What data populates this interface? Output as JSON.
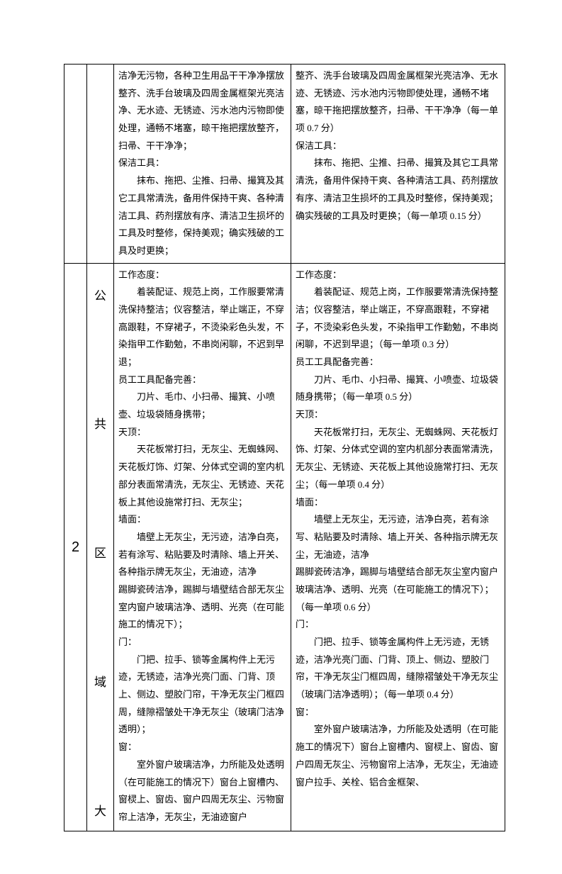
{
  "row1": {
    "col3_lines": [
      {
        "indent": false,
        "text": "洁净无污物，各种卫生用品干干净净摆放整齐、洗手台玻璃及四周金属框架光亮洁净、无水迹、无锈迹、污水池内污物即使处理，通畅不堵塞，晾干拖把摆放整齐，扫帚、干干净净；"
      },
      {
        "indent": false,
        "text": "保洁工具："
      },
      {
        "indent": true,
        "text": "抹布、拖把、尘推、扫帚、撮箕及其它工具常清洗，备用件保持干爽、各种清洁工具、药剂摆放有序、清洁卫生损坏的工具及时整修，保持美观；确实残破的工具及时更换；"
      }
    ],
    "col4_lines": [
      {
        "indent": false,
        "text": "整齐、洗手台玻璃及四周金属框架光亮洁净、无水迹、无锈迹、污水池内污物即使处理，通畅不堵塞，晾干拖把摆放整齐，扫帚、干干净净（每一单项 0.7 分）"
      },
      {
        "indent": false,
        "text": "保洁工具："
      },
      {
        "indent": true,
        "text": "抹布、拖把、尘推、扫帚、撮箕及其它工具常清洗，备用件保持干爽、各种清洁工具、药剂摆放有序、清洁卫生损坏的工具及时整修，保持美观；确实残破的工具及时更换；（每一单项 0.15 分）"
      }
    ]
  },
  "row2": {
    "num": "2",
    "cat_chars": [
      "公",
      "共",
      "区",
      "域",
      "大"
    ],
    "col3_lines": [
      {
        "indent": false,
        "text": "工作态度："
      },
      {
        "indent": true,
        "text": "着装配证、规范上岗，工作服要常清洗保持整洁；仪容整洁，举止端正，不穿高跟鞋，不穿裙子，不烫染彩色头发，不染指甲工作勤勉，不串岗闲聊，不迟到早退；"
      },
      {
        "indent": false,
        "text": "员工工具配备完善："
      },
      {
        "indent": true,
        "text": "刀片、毛巾、小扫帚、撮箕、小喷壶、垃圾袋随身携带；"
      },
      {
        "indent": false,
        "text": "天顶："
      },
      {
        "indent": true,
        "text": "天花板常打扫，无灰尘、无蜘蛛网、天花板灯饰、灯架、分体式空调的室内机部分表面常清洗，无灰尘、无锈迹、天花板上其他设施常打扫、无灰尘；"
      },
      {
        "indent": false,
        "text": "墙面："
      },
      {
        "indent": true,
        "text": "墙壁上无灰尘，无污迹，洁净白亮，若有涂写、粘贴要及时清除、墙上开关、各种指示牌无灰尘，无油迹，洁净"
      },
      {
        "indent": false,
        "text": "踢脚瓷砖洁净，踢脚与墙壁结合部无灰尘室内窗户玻璃洁净、透明、光亮（在可能施工的情况下）；"
      },
      {
        "indent": false,
        "text": "门："
      },
      {
        "indent": true,
        "text": "门把、拉手、锁等金属构件上无污迹，无锈迹，洁净光亮门面、门背、顶上、侧边、塑胶门帘，干净无灰尘门框四周，缝隙褶皱处干净无灰尘（玻璃门洁净透明）；"
      },
      {
        "indent": false,
        "text": "窗："
      },
      {
        "indent": true,
        "text": "室外窗户玻璃洁净，力所能及处透明（在可能施工的情况下）窗台上窗槽内、窗棂上、窗齿、窗户四周无灰尘、污物窗帘上洁净，无灰尘，无油迹窗户"
      }
    ],
    "col4_lines": [
      {
        "indent": false,
        "text": "工作态度："
      },
      {
        "indent": true,
        "text": "着装配证、规范上岗，工作服要常清洗保持整洁；仪容整洁，举止端正，不穿高跟鞋，不穿裙子，不烫染彩色头发，不染指甲工作勤勉，不串岗闲聊，不迟到早退；（每一单项 0.3 分）"
      },
      {
        "indent": false,
        "text": "员工工具配备完善："
      },
      {
        "indent": true,
        "text": "刀片、毛巾、小扫帚、撮箕、小喷壶、垃圾袋随身携带；（每一单项 0.5 分）"
      },
      {
        "indent": false,
        "text": "天顶："
      },
      {
        "indent": true,
        "text": "天花板常打扫，无灰尘、无蜘蛛网、天花板灯饰、灯架、分体式空调的室内机部分表面常清洗，无灰尘、无锈迹、天花板上其他设施常打扫、无灰尘；（每一单项 0.4 分）"
      },
      {
        "indent": false,
        "text": "墙面："
      },
      {
        "indent": true,
        "text": "墙壁上无灰尘，无污迹，洁净白亮，若有涂写、粘贴要及时清除、墙上开关、各种指示牌无灰尘，无油迹，洁净"
      },
      {
        "indent": false,
        "text": "踢脚瓷砖洁净，踢脚与墙壁结合部无灰尘室内窗户玻璃洁净、透明、光亮（在可能施工的情况下）；（每一单项 0.6 分）"
      },
      {
        "indent": false,
        "text": "门："
      },
      {
        "indent": true,
        "text": "门把、拉手、锁等金属构件上无污迹，无锈迹，洁净光亮门面、门背、顶上、侧边、塑胶门帘，干净无灰尘门框四周，缝隙褶皱处干净无灰尘（玻璃门洁净透明）；（每一单项 0.4 分）"
      },
      {
        "indent": false,
        "text": "窗："
      },
      {
        "indent": true,
        "text": "室外窗户玻璃洁净，力所能及处透明（在可能施工的情况下）窗台上窗槽内、窗棂上、窗齿、窗户四周无灰尘、污物窗帘上洁净，无灰尘，无油迹窗户拉手、关栓、铝合金框架、"
      }
    ]
  }
}
